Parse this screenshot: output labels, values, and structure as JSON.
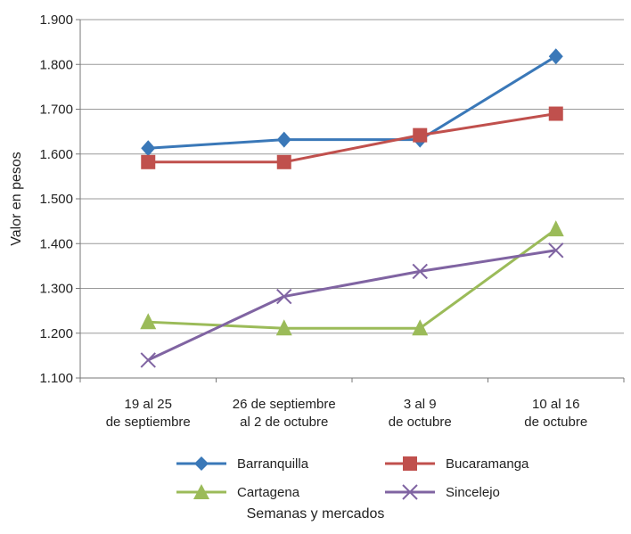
{
  "chart_data": {
    "type": "line",
    "title": "",
    "xlabel": "Semanas y mercados",
    "ylabel": "Valor en pesos",
    "categories": [
      [
        "19 al 25",
        "de septiembre"
      ],
      [
        "26 de septiembre",
        "al 2 de octubre"
      ],
      [
        "3 al 9",
        "de octubre"
      ],
      [
        "10 al 16",
        "de octubre"
      ]
    ],
    "ylim": [
      1100,
      1900
    ],
    "yticks": [
      1100,
      1200,
      1300,
      1400,
      1500,
      1600,
      1700,
      1800,
      1900
    ],
    "ytick_labels": [
      "1.100",
      "1.200",
      "1.300",
      "1.400",
      "1.500",
      "1.600",
      "1.700",
      "1.800",
      "1.900"
    ],
    "grid": "horizontal",
    "legend_position": "bottom",
    "series": [
      {
        "name": "Barranquilla",
        "values": [
          1613,
          1632,
          1632,
          1818
        ],
        "color": "#3A78B8",
        "marker": "diamond"
      },
      {
        "name": "Bucaramanga",
        "values": [
          1582,
          1582,
          1642,
          1690
        ],
        "color": "#C0504D",
        "marker": "square"
      },
      {
        "name": "Cartagena",
        "values": [
          1225,
          1211,
          1211,
          1432
        ],
        "color": "#9BBB59",
        "marker": "triangle"
      },
      {
        "name": "Sincelejo",
        "values": [
          1140,
          1282,
          1338,
          1385
        ],
        "color": "#8064A2",
        "marker": "x"
      }
    ]
  }
}
